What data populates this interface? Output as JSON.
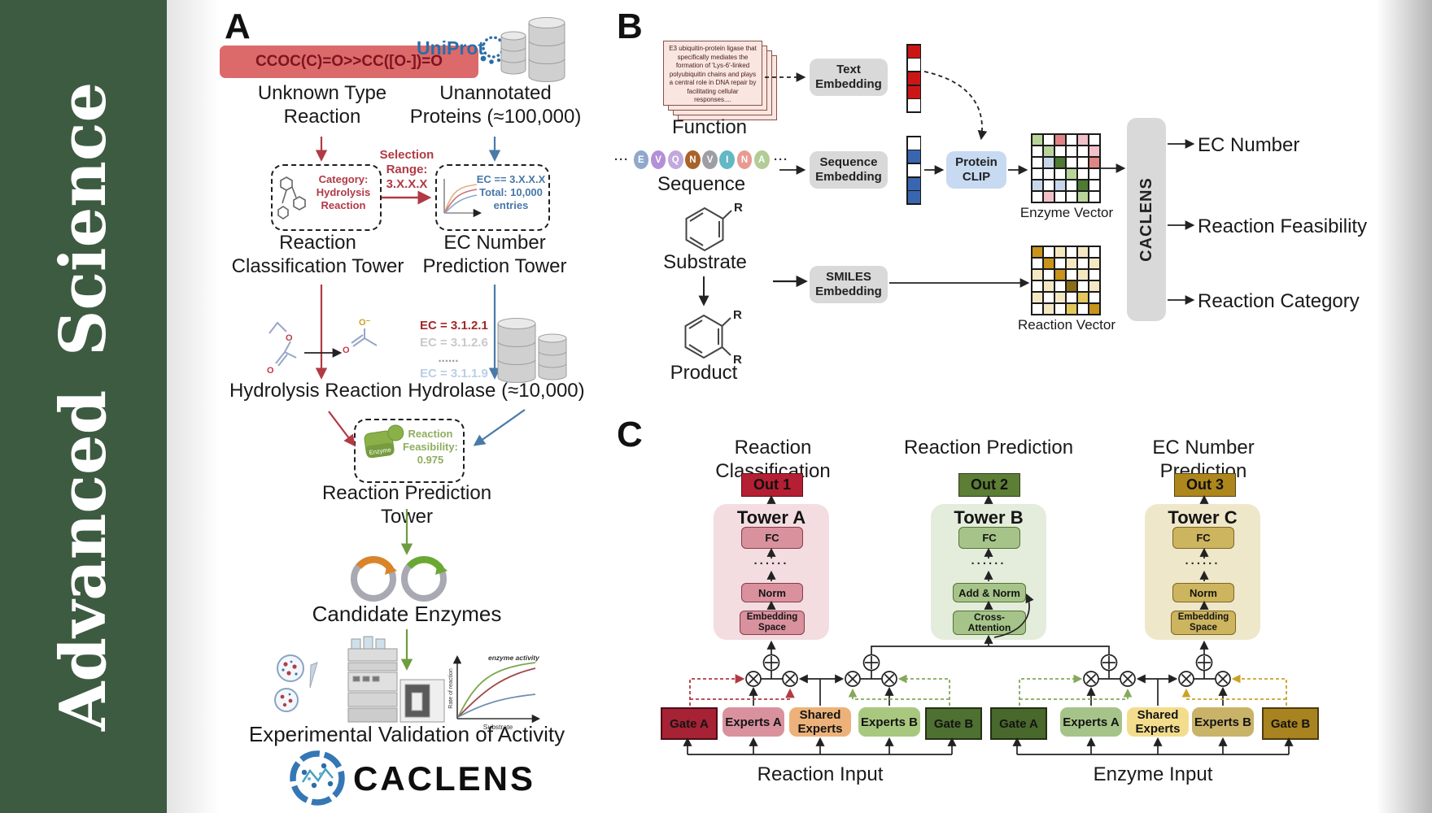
{
  "sidebar": {
    "word1": "Advanced",
    "word2": "Science",
    "bg": "#3d5b41"
  },
  "panelA": {
    "label": "A",
    "smiles_box": "CCOC(C)=O>>CC([O-])=O",
    "unknown_reaction": "Unknown Type\nReaction",
    "uniprot": "UniProt",
    "unannotated": "Unannotated\nProteins (≈100,000)",
    "selection": "Selection\nRange:\n3.X.X.X",
    "category_box": "Category:\nHydrolysis\nReaction",
    "ec_box": "EC == 3.X.X.X\nTotal: 10,000\nentries",
    "classification_tower": "Reaction\nClassification Tower",
    "ec_prediction_tower": "EC Number\nPrediction Tower",
    "hydrolysis": "Hydrolysis Reaction",
    "ec_list": [
      {
        "text": "EC = 3.1.2.1",
        "color": "#a3262a"
      },
      {
        "text": "EC = 3.1.2.6",
        "color": "#c9c9c9"
      },
      {
        "text": "......",
        "color": "#9a9a9a"
      },
      {
        "text": "EC = 3.1.1.9",
        "color": "#b9cfe6"
      }
    ],
    "hydrolase": "Hydrolase (≈10,000)",
    "enzyme_label": "Enzyme",
    "feasibility": "Reaction\nFeasibility:\n0.975",
    "reaction_prediction_tower": "Reaction Prediction Tower",
    "candidate_enzymes": "Candidate Enzymes",
    "plot": {
      "legend": "enzyme activity",
      "ylabel": "Rate of reaction",
      "xlabel": "Substrate"
    },
    "validation": "Experimental Validation of Activity",
    "logo": "CACLENS",
    "atoms": {
      "o": "O",
      "o_minus": "O⁻"
    }
  },
  "panelB": {
    "label": "B",
    "function_card": "E3 ubiquitin-protein ligase that specifically mediates the formation of 'Lys-6'-linked polyubiquitin chains and plays a central role in DNA repair by facilitating cellular responses....",
    "function_label": "Function",
    "ellipsis": "···",
    "residues": [
      {
        "letter": "E",
        "color": "#8fa8cc"
      },
      {
        "letter": "V",
        "color": "#b48fd9"
      },
      {
        "letter": "Q",
        "color": "#c2a8dd"
      },
      {
        "letter": "N",
        "color": "#a8622a"
      },
      {
        "letter": "V",
        "color": "#9e9ea4"
      },
      {
        "letter": "I",
        "color": "#62b8c4"
      },
      {
        "letter": "N",
        "color": "#e89a92"
      },
      {
        "letter": "A",
        "color": "#b2cc96"
      }
    ],
    "sequence_label": "Sequence",
    "substrate_label": "Substrate",
    "product_label": "Product",
    "r_label": "R",
    "text_embedding": "Text\nEmbedding",
    "sequence_embedding": "Sequence\nEmbedding",
    "smiles_embedding": "SMILES\nEmbedding",
    "protein_clip": "Protein\nCLIP",
    "text_vector": [
      "#cc1616",
      "#ffffff",
      "#cc1616",
      "#cc1616",
      "#ffffff"
    ],
    "sequence_vector": [
      "#ffffff",
      "#3a66b0",
      "#ffffff",
      "#3a66b0",
      "#3a66b0"
    ],
    "enzyme_vector_label": "Enzyme Vector",
    "reaction_vector_label": "Reaction Vector",
    "enzyme_grid": [
      "#b9d49b",
      "#ffffff",
      "#e08585",
      "#ffffff",
      "#f2c0c8",
      "#ffffff",
      "#ffffff",
      "#b9d49b",
      "#ffffff",
      "#ffffff",
      "#ffffff",
      "#f2c0c8",
      "#ffffff",
      "#c6d7ec",
      "#4e7b33",
      "#ffffff",
      "#ffffff",
      "#e08585",
      "#ffffff",
      "#ffffff",
      "#ffffff",
      "#b9d49b",
      "#ffffff",
      "#ffffff",
      "#c6d7ec",
      "#ffffff",
      "#c6d7ec",
      "#ffffff",
      "#4e7b33",
      "#ffffff",
      "#ffffff",
      "#f2c0c8",
      "#ffffff",
      "#ffffff",
      "#b9d49b",
      "#ffffff"
    ],
    "reaction_grid": [
      "#c8941a",
      "#ffffff",
      "#f3e8c2",
      "#ffffff",
      "#f3e8c2",
      "#ffffff",
      "#ffffff",
      "#c8941a",
      "#ffffff",
      "#f3e8c2",
      "#ffffff",
      "#f3e8c2",
      "#f3e8c2",
      "#ffffff",
      "#c8941a",
      "#ffffff",
      "#f3e8c2",
      "#ffffff",
      "#ffffff",
      "#f3e8c2",
      "#ffffff",
      "#8a6d14",
      "#ffffff",
      "#f3e8c2",
      "#f3e8c2",
      "#ffffff",
      "#f3e8c2",
      "#ffffff",
      "#e3c75c",
      "#ffffff",
      "#ffffff",
      "#f3e8c2",
      "#ffffff",
      "#e3c75c",
      "#ffffff",
      "#c8941a"
    ],
    "caclens": "CACLENS",
    "outputs": [
      "EC Number",
      "Reaction Feasibility",
      "Reaction Category"
    ]
  },
  "panelC": {
    "label": "C",
    "headers": [
      "Reaction Classification",
      "Reaction Prediction",
      "EC Number Prediction"
    ],
    "outs": [
      {
        "text": "Out 1",
        "bg": "#b51f33"
      },
      {
        "text": "Out 2",
        "bg": "#5c7e35"
      },
      {
        "text": "Out 3",
        "bg": "#ad861c"
      }
    ],
    "towerA": {
      "title": "Tower A",
      "fc": "FC",
      "dots": "......",
      "norm": "Norm",
      "emb": "Embedding\nSpace",
      "container": "#f3dde1",
      "inner": "#d9919e"
    },
    "towerB": {
      "title": "Tower B",
      "fc": "FC",
      "dots": "......",
      "norm": "Add & Norm",
      "emb": "Cross-\nAttention",
      "container": "#e4ecdc",
      "inner": "#a6c489"
    },
    "towerC": {
      "title": "Tower C",
      "fc": "FC",
      "dots": "......",
      "norm": "Norm",
      "emb": "Embedding\nSpace",
      "container": "#efe7ca",
      "inner": "#cdb45e"
    },
    "moe_left": {
      "gate_a": {
        "text": "Gate A",
        "bg": "#a62234"
      },
      "experts_a": {
        "text": "Experts A",
        "bg": "#d9919e"
      },
      "shared": {
        "text": "Shared\nExperts",
        "bg": "#ecb279"
      },
      "experts_b": {
        "text": "Experts B",
        "bg": "#a9c87f"
      },
      "gate_b": {
        "text": "Gate B",
        "bg": "#4e7031"
      },
      "input": "Reaction Input"
    },
    "moe_right": {
      "gate_a": {
        "text": "Gate A",
        "bg": "#48682c"
      },
      "experts_a": {
        "text": "Experts A",
        "bg": "#a6c489"
      },
      "shared": {
        "text": "Shared\nExperts",
        "bg": "#f3dd8d"
      },
      "experts_b": {
        "text": "Experts B",
        "bg": "#c9b369"
      },
      "gate_b": {
        "text": "Gate B",
        "bg": "#a8831f"
      },
      "input": "Enzyme Input"
    }
  }
}
